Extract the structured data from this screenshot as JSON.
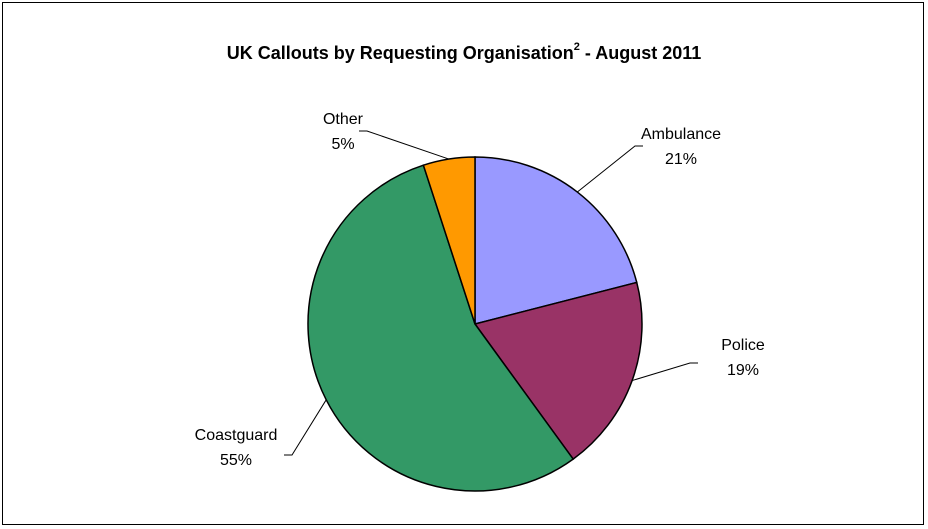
{
  "chart_data": {
    "type": "pie",
    "title": "UK Callouts by Requesting Organisation",
    "title_superscript": "2",
    "title_suffix": " - August 2011",
    "slices": [
      {
        "name": "Ambulance",
        "value": 21,
        "label": "21%",
        "color": "#9999ff"
      },
      {
        "name": "Police",
        "value": 19,
        "label": "19%",
        "color": "#993366"
      },
      {
        "name": "Coastguard",
        "value": 55,
        "label": "55%",
        "color": "#339966"
      },
      {
        "name": "Other",
        "value": 5,
        "label": "5%",
        "color": "#ff9900"
      }
    ],
    "start_angle_deg": 0,
    "direction": "clockwise"
  }
}
